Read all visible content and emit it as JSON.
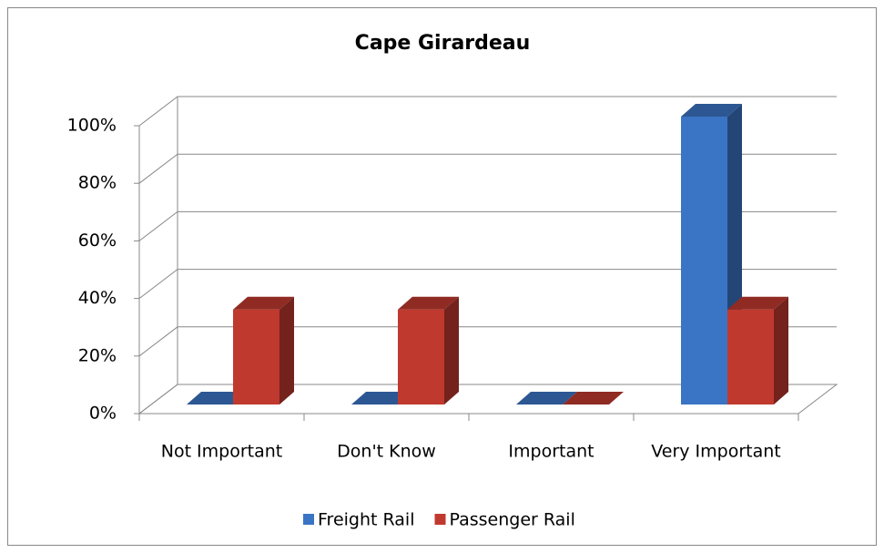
{
  "chart_data": {
    "type": "bar3d",
    "title": "Cape Girardeau",
    "categories": [
      "Not Important",
      "Don't Know",
      "Important",
      "Very Important"
    ],
    "series": [
      {
        "name": "Freight Rail",
        "color": "#3a74c4",
        "values": [
          0,
          0,
          0,
          100
        ]
      },
      {
        "name": "Passenger Rail",
        "color": "#c0392f",
        "values": [
          33,
          33,
          0,
          33
        ]
      }
    ],
    "ylim": [
      0,
      100
    ],
    "yticks": [
      {
        "value": 0,
        "label": "0%"
      },
      {
        "value": 20,
        "label": "20%"
      },
      {
        "value": 40,
        "label": "40%"
      },
      {
        "value": 60,
        "label": "60%"
      },
      {
        "value": 80,
        "label": "80%"
      },
      {
        "value": 100,
        "label": "100%"
      }
    ],
    "grid": true,
    "legend": "bottom"
  }
}
